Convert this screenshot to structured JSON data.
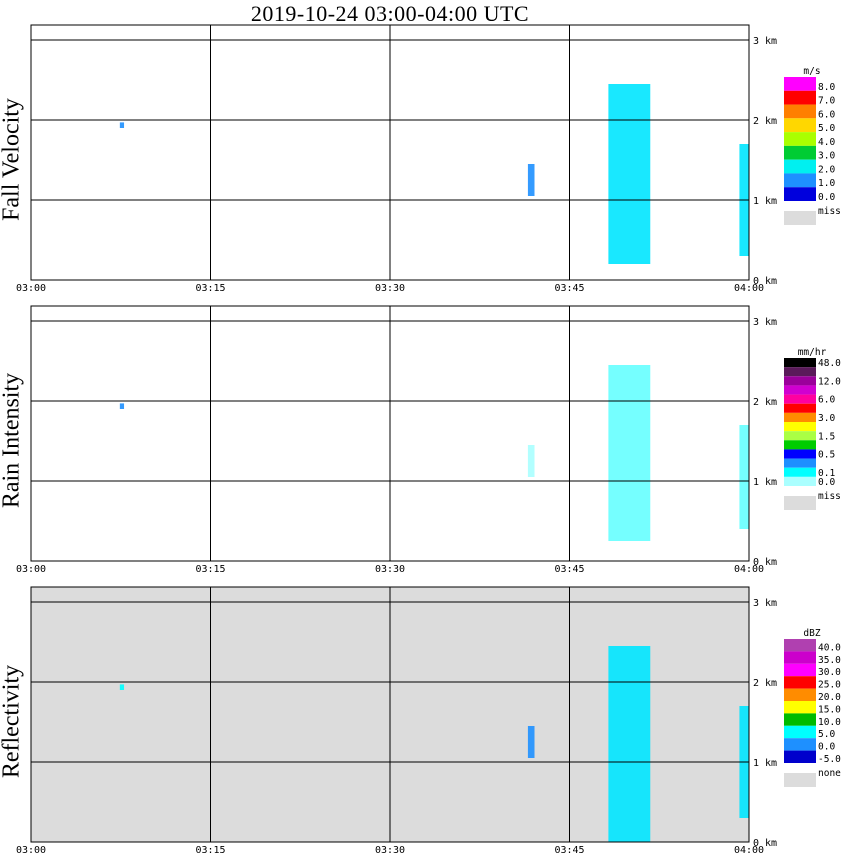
{
  "title": "2019-10-24   03:00-04:00 UTC",
  "panels": [
    {
      "label": "Fall Velocity"
    },
    {
      "label": "Rain Intensity"
    },
    {
      "label": "Reflectivity"
    }
  ],
  "chart_data": [
    {
      "type": "heatmap",
      "ylabel": "Fall Velocity",
      "x_ticks": [
        "03:00",
        "03:15",
        "03:30",
        "03:45",
        "04:00"
      ],
      "y_ticks": [
        "0 km",
        "1 km",
        "2 km",
        "3 km"
      ],
      "ylim": [
        0,
        3.2
      ],
      "legend_unit": "m/s",
      "legend_levels": [
        "8.0",
        "7.0",
        "6.0",
        "5.0",
        "4.0",
        "3.0",
        "2.0",
        "1.0",
        "0.0"
      ],
      "legend_colors": [
        "#ff00ff",
        "#ff0000",
        "#ff7f00",
        "#ffd700",
        "#aaff00",
        "#00cc33",
        "#00f0f0",
        "#1e90ff",
        "#0000dd"
      ],
      "missing_label": "miss",
      "missing_color": "#dcdcdc",
      "background": "#ffffff",
      "echoes": [
        {
          "t": 7.6,
          "w": 0.35,
          "z0": 1.9,
          "z1": 1.97,
          "color": "#1e90ff"
        },
        {
          "t": 41.8,
          "w": 0.55,
          "z0": 1.05,
          "z1": 1.45,
          "color": "#1e90ff"
        },
        {
          "t": 50.0,
          "w": 3.5,
          "z0": 0.2,
          "z1": 2.45,
          "color": "#00e5ff"
        },
        {
          "t": 59.6,
          "w": 0.8,
          "z0": 0.3,
          "z1": 1.7,
          "color": "#00e5ff"
        }
      ]
    },
    {
      "type": "heatmap",
      "ylabel": "Rain Intensity",
      "x_ticks": [
        "03:00",
        "03:15",
        "03:30",
        "03:45",
        "04:00"
      ],
      "y_ticks": [
        "0 km",
        "1 km",
        "2 km",
        "3 km"
      ],
      "ylim": [
        0,
        3.2
      ],
      "legend_unit": "mm/hr",
      "legend_levels": [
        "48.0",
        "",
        "12.0",
        "",
        "6.0",
        "",
        "3.0",
        "",
        "1.5",
        "",
        "0.5",
        "",
        "0.1",
        "0.0"
      ],
      "legend_colors": [
        "#000000",
        "#5a1a5a",
        "#9b009b",
        "#d000d0",
        "#ff00a0",
        "#ff0000",
        "#ff8c00",
        "#ffff00",
        "#aaff44",
        "#00cc00",
        "#0000ff",
        "#1e90ff",
        "#00ffff",
        "#aaffff"
      ],
      "missing_label": "miss",
      "missing_color": "#dcdcdc",
      "background": "#ffffff",
      "echoes": [
        {
          "t": 7.6,
          "w": 0.35,
          "z0": 1.9,
          "z1": 1.97,
          "color": "#1e90ff"
        },
        {
          "t": 41.8,
          "w": 0.55,
          "z0": 1.05,
          "z1": 1.45,
          "color": "#aaffff"
        },
        {
          "t": 50.0,
          "w": 3.5,
          "z0": 0.25,
          "z1": 2.45,
          "color": "#66ffff"
        },
        {
          "t": 59.6,
          "w": 0.8,
          "z0": 0.4,
          "z1": 1.7,
          "color": "#66ffff"
        }
      ]
    },
    {
      "type": "heatmap",
      "ylabel": "Reflectivity",
      "x_ticks": [
        "03:00",
        "03:15",
        "03:30",
        "03:45",
        "04:00"
      ],
      "y_ticks": [
        "0 km",
        "1 km",
        "2 km",
        "3 km"
      ],
      "ylim": [
        0,
        3.2
      ],
      "legend_unit": "dBZ",
      "legend_levels": [
        "40.0",
        "35.0",
        "30.0",
        "25.0",
        "20.0",
        "15.0",
        "10.0",
        "5.0",
        "0.0",
        "-5.0"
      ],
      "legend_colors": [
        "#b040b0",
        "#cc00cc",
        "#ff00ff",
        "#ff0000",
        "#ff8c00",
        "#ffff00",
        "#00bb00",
        "#00ffff",
        "#1e90ff",
        "#0000cc"
      ],
      "missing_label": "none",
      "missing_color": "#dcdcdc",
      "background": "#dcdcdc",
      "echoes": [
        {
          "t": 7.6,
          "w": 0.35,
          "z0": 1.9,
          "z1": 1.97,
          "color": "#00ffff"
        },
        {
          "t": 41.8,
          "w": 0.55,
          "z0": 1.05,
          "z1": 1.45,
          "color": "#1e90ff"
        },
        {
          "t": 50.0,
          "w": 3.5,
          "z0": 0.0,
          "z1": 2.45,
          "color": "#00e5ff"
        },
        {
          "t": 59.6,
          "w": 0.8,
          "z0": 0.3,
          "z1": 1.7,
          "color": "#00e5ff"
        }
      ]
    }
  ]
}
